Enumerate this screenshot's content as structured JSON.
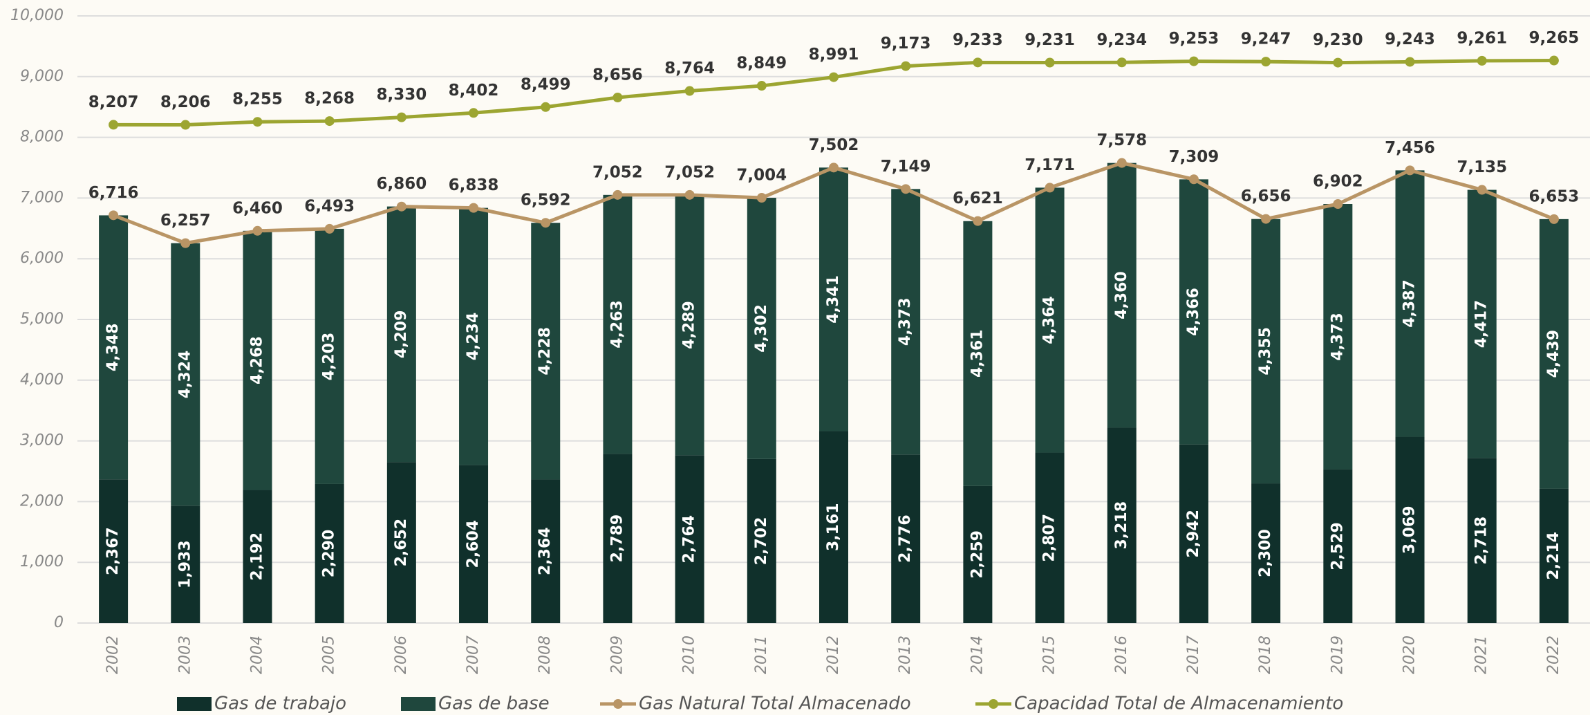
{
  "chart_data": {
    "type": "bar",
    "categories": [
      "2002",
      "2003",
      "2004",
      "2005",
      "2006",
      "2007",
      "2008",
      "2009",
      "2010",
      "2011",
      "2012",
      "2013",
      "2014",
      "2015",
      "2016",
      "2017",
      "2018",
      "2019",
      "2020",
      "2021",
      "2022"
    ],
    "series": [
      {
        "name": "Gas de trabajo",
        "type": "bar",
        "color": "#10302b",
        "values": [
          2367,
          1933,
          2192,
          2290,
          2652,
          2604,
          2364,
          2789,
          2764,
          2702,
          3161,
          2776,
          2259,
          2807,
          3218,
          2942,
          2300,
          2529,
          3069,
          2718,
          2214
        ],
        "value_labels": [
          "2,367",
          "1,933",
          "2,192",
          "2,290",
          "2,652",
          "2,604",
          "2,364",
          "2,789",
          "2,764",
          "2,702",
          "3,161",
          "2,776",
          "2,259",
          "2,807",
          "3,218",
          "2,942",
          "2,300",
          "2,529",
          "3,069",
          "2,718",
          "2,214"
        ]
      },
      {
        "name": "Gas de base",
        "type": "bar",
        "color": "#1f473d",
        "values": [
          4348,
          4324,
          4268,
          4203,
          4209,
          4234,
          4228,
          4263,
          4289,
          4302,
          4341,
          4373,
          4361,
          4364,
          4360,
          4366,
          4355,
          4373,
          4387,
          4417,
          4439
        ],
        "value_labels": [
          "4,348",
          "4,324",
          "4,268",
          "4,203",
          "4,209",
          "4,234",
          "4,228",
          "4,263",
          "4,289",
          "4,302",
          "4,341",
          "4,373",
          "4,361",
          "4,364",
          "4,360",
          "4,366",
          "4,355",
          "4,373",
          "4,387",
          "4,417",
          "4,439"
        ]
      },
      {
        "name": "Gas Natural Total Almacenado",
        "type": "line",
        "color": "#b99565",
        "values": [
          6716,
          6257,
          6460,
          6493,
          6860,
          6838,
          6592,
          7052,
          7052,
          7004,
          7502,
          7149,
          6621,
          7171,
          7578,
          7309,
          6656,
          6902,
          7456,
          7135,
          6653
        ],
        "value_labels": [
          "6,716",
          "6,257",
          "6,460",
          "6,493",
          "6,860",
          "6,838",
          "6,592",
          "7,052",
          "7,052",
          "7,004",
          "7,502",
          "7,149",
          "6,621",
          "7,171",
          "7,578",
          "7,309",
          "6,656",
          "6,902",
          "7,456",
          "7,135",
          "6,653"
        ]
      },
      {
        "name": "Capacidad Total de Almacenamiento",
        "type": "line",
        "color": "#9ca531",
        "values": [
          8207,
          8206,
          8255,
          8268,
          8330,
          8402,
          8499,
          8656,
          8764,
          8849,
          8991,
          9173,
          9233,
          9231,
          9234,
          9253,
          9247,
          9230,
          9243,
          9261,
          9265
        ],
        "value_labels": [
          "8,207",
          "8,206",
          "8,255",
          "8,268",
          "8,330",
          "8,402",
          "8,499",
          "8,656",
          "8,764",
          "8,849",
          "8,991",
          "9,173",
          "9,233",
          "9,231",
          "9,234",
          "9,253",
          "9,247",
          "9,230",
          "9,243",
          "9,261",
          "9,265"
        ]
      }
    ],
    "ylim": [
      0,
      10000
    ],
    "yticks": [
      0,
      {
        "value": 1000,
        "label": "1,000"
      },
      {
        "value": 2000,
        "label": "2,000"
      },
      {
        "value": 3000,
        "label": "3,000"
      },
      {
        "value": 4000,
        "label": "4,000"
      },
      {
        "value": 5000,
        "label": "5,000"
      },
      {
        "value": 6000,
        "label": "6,000"
      },
      {
        "value": 7000,
        "label": "7,000"
      },
      {
        "value": 8000,
        "label": "8,000"
      },
      {
        "value": 9000,
        "label": "9,000"
      },
      {
        "value": 10000,
        "label": "10,000"
      }
    ],
    "grid": true,
    "legend": "bottom"
  }
}
